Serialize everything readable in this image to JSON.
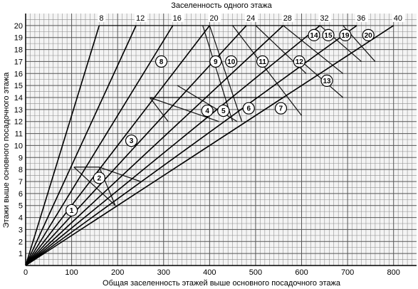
{
  "chart_data": {
    "type": "line",
    "title": "Заселенность одного этажа",
    "xlabel": "Общая заселенность этажей выше основного посадочного этажа",
    "ylabel": "Этажи выше основного посадочного этажа",
    "xlim": [
      0,
      850
    ],
    "ylim": [
      0,
      21
    ],
    "grid": true,
    "x_ticks": [
      "0",
      "100",
      "200",
      "300",
      "400",
      "500",
      "600",
      "700",
      "800"
    ],
    "y_ticks": [
      "1",
      "2",
      "3",
      "4",
      "5",
      "6",
      "7",
      "8",
      "9",
      "10",
      "11",
      "12",
      "13",
      "14",
      "15",
      "16",
      "17",
      "18",
      "19",
      "20"
    ],
    "series": [
      {
        "name": "8",
        "occupancy_per_floor": 8,
        "x": [
          0,
          160
        ],
        "y": [
          0,
          20
        ]
      },
      {
        "name": "12",
        "occupancy_per_floor": 12,
        "x": [
          0,
          240
        ],
        "y": [
          0,
          20
        ]
      },
      {
        "name": "16",
        "occupancy_per_floor": 16,
        "x": [
          0,
          320
        ],
        "y": [
          0,
          20
        ]
      },
      {
        "name": "20",
        "occupancy_per_floor": 20,
        "x": [
          0,
          400
        ],
        "y": [
          0,
          20
        ]
      },
      {
        "name": "24",
        "occupancy_per_floor": 24,
        "x": [
          0,
          480
        ],
        "y": [
          0,
          20
        ]
      },
      {
        "name": "28",
        "occupancy_per_floor": 28,
        "x": [
          0,
          560
        ],
        "y": [
          0,
          20
        ]
      },
      {
        "name": "32",
        "occupancy_per_floor": 32,
        "x": [
          0,
          640
        ],
        "y": [
          0,
          20
        ]
      },
      {
        "name": "36",
        "occupancy_per_floor": 36,
        "x": [
          0,
          720
        ],
        "y": [
          0,
          20
        ]
      },
      {
        "name": "40",
        "occupancy_per_floor": 40,
        "x": [
          0,
          800
        ],
        "y": [
          0,
          20
        ]
      }
    ],
    "zone_boundaries": [
      {
        "x": [
          105,
          160
        ],
        "y": [
          8.2,
          8.2
        ]
      },
      {
        "x": [
          105,
          195
        ],
        "y": [
          8.2,
          5
        ]
      },
      {
        "x": [
          160,
          195
        ],
        "y": [
          8.2,
          5
        ]
      },
      {
        "x": [
          160,
          250
        ],
        "y": [
          8.2,
          7
        ]
      },
      {
        "x": [
          160,
          240
        ],
        "y": [
          20,
          20
        ]
      },
      {
        "x": [
          240,
          400
        ],
        "y": [
          20,
          20
        ]
      },
      {
        "x": [
          400,
          480
        ],
        "y": [
          20,
          20
        ]
      },
      {
        "x": [
          480,
          560
        ],
        "y": [
          20,
          20
        ]
      },
      {
        "x": [
          560,
          640
        ],
        "y": [
          20,
          20
        ]
      },
      {
        "x": [
          640,
          720
        ],
        "y": [
          20,
          20
        ]
      },
      {
        "x": [
          270,
          560
        ],
        "y": [
          14,
          14
        ]
      },
      {
        "x": [
          270,
          310
        ],
        "y": [
          14,
          12
        ]
      },
      {
        "x": [
          385,
          450
        ],
        "y": [
          20,
          12
        ]
      },
      {
        "x": [
          400,
          470
        ],
        "y": [
          20,
          12
        ]
      },
      {
        "x": [
          450,
          600
        ],
        "y": [
          20,
          12.5
        ]
      },
      {
        "x": [
          500,
          610
        ],
        "y": [
          20,
          16
        ]
      },
      {
        "x": [
          560,
          690
        ],
        "y": [
          20,
          16
        ]
      },
      {
        "x": [
          600,
          690
        ],
        "y": [
          17,
          14
        ]
      },
      {
        "x": [
          640,
          730
        ],
        "y": [
          20,
          17
        ]
      },
      {
        "x": [
          690,
          760
        ],
        "y": [
          20,
          17
        ]
      },
      {
        "x": [
          270,
          420
        ],
        "y": [
          14,
          12
        ]
      },
      {
        "x": [
          330,
          460
        ],
        "y": [
          15,
          12
        ]
      }
    ],
    "annotations": [
      {
        "label": "1",
        "x": 100,
        "y": 4.6
      },
      {
        "label": "2",
        "x": 160,
        "y": 7.3
      },
      {
        "label": "3",
        "x": 230,
        "y": 10.4
      },
      {
        "label": "4",
        "x": 395,
        "y": 12.9
      },
      {
        "label": "5",
        "x": 430,
        "y": 12.9
      },
      {
        "label": "6",
        "x": 485,
        "y": 13.1
      },
      {
        "label": "7",
        "x": 555,
        "y": 13.1
      },
      {
        "label": "8",
        "x": 295,
        "y": 17.0
      },
      {
        "label": "9",
        "x": 413,
        "y": 17.0
      },
      {
        "label": "10",
        "x": 447,
        "y": 17.0
      },
      {
        "label": "11",
        "x": 515,
        "y": 17.0
      },
      {
        "label": "12",
        "x": 595,
        "y": 17.0
      },
      {
        "label": "13",
        "x": 655,
        "y": 15.4
      },
      {
        "label": "14",
        "x": 627,
        "y": 19.2
      },
      {
        "label": "15",
        "x": 658,
        "y": 19.2
      },
      {
        "label": "19",
        "x": 695,
        "y": 19.2
      },
      {
        "label": "20",
        "x": 745,
        "y": 19.2
      }
    ]
  }
}
